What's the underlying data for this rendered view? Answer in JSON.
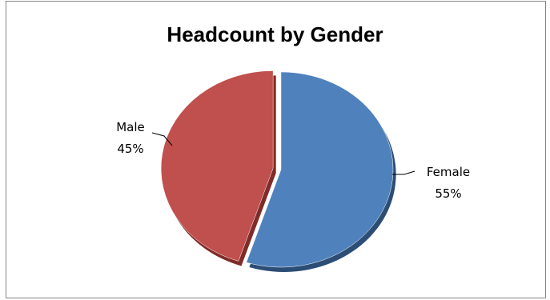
{
  "chart_data": {
    "type": "pie",
    "title": "Headcount by Gender",
    "slices": [
      {
        "name": "Female",
        "value": 55,
        "label": "55%",
        "color": "#4F81BD",
        "shadow": "#2C4D75",
        "exploded": false
      },
      {
        "name": "Male",
        "value": 45,
        "label": "45%",
        "color": "#C0504D",
        "shadow": "#7F2C29",
        "exploded": true
      }
    ],
    "legend": "none",
    "data_labels": "outside-with-leader-lines"
  }
}
